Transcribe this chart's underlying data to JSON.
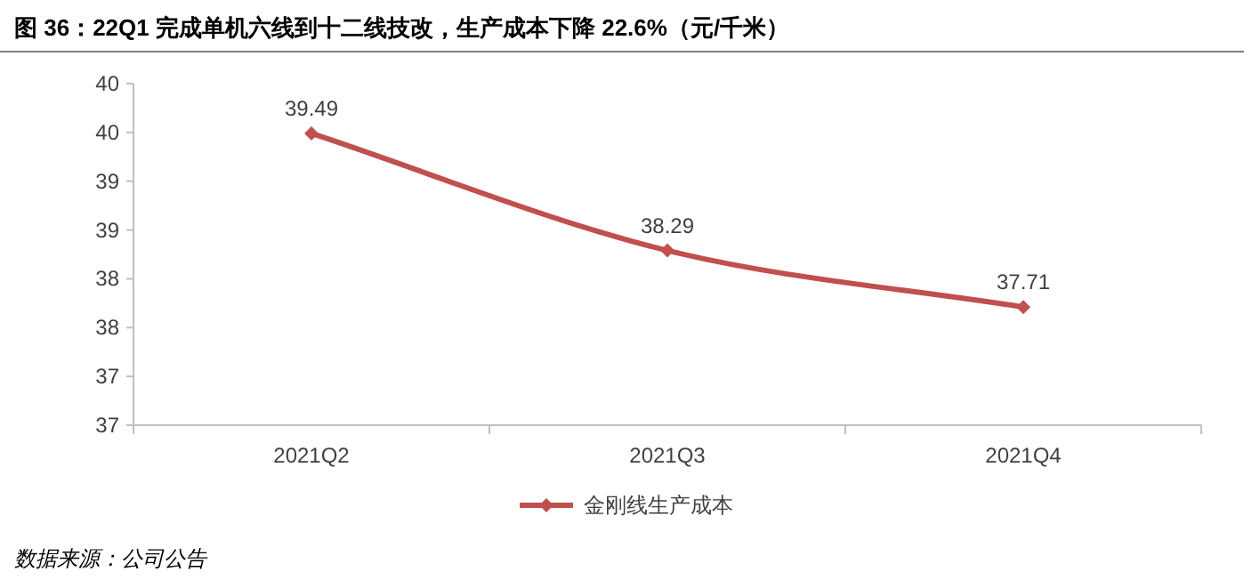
{
  "chart_data": {
    "type": "line",
    "title": "图 36：22Q1 完成单机六线到十二线技改，生产成本下降 22.6%（元/千米）",
    "categories": [
      "2021Q2",
      "2021Q3",
      "2021Q4"
    ],
    "series": [
      {
        "name": "金刚线生产成本",
        "color": "#c0504d",
        "values": [
          39.49,
          38.29,
          37.71
        ]
      }
    ],
    "ylim": [
      36.5,
      40
    ],
    "yticks": [
      {
        "value": 36.5,
        "label": "37"
      },
      {
        "value": 37,
        "label": "37"
      },
      {
        "value": 37.5,
        "label": "38"
      },
      {
        "value": 38,
        "label": "38"
      },
      {
        "value": 38.5,
        "label": "39"
      },
      {
        "value": 39,
        "label": "39"
      },
      {
        "value": 39.5,
        "label": "40"
      },
      {
        "value": 40,
        "label": "40"
      }
    ],
    "data_labels": true,
    "legend": "bottom",
    "marker": "diamond",
    "line_style": "solid",
    "grid": false,
    "annotations": [
      "数据来源：公司公告"
    ]
  }
}
